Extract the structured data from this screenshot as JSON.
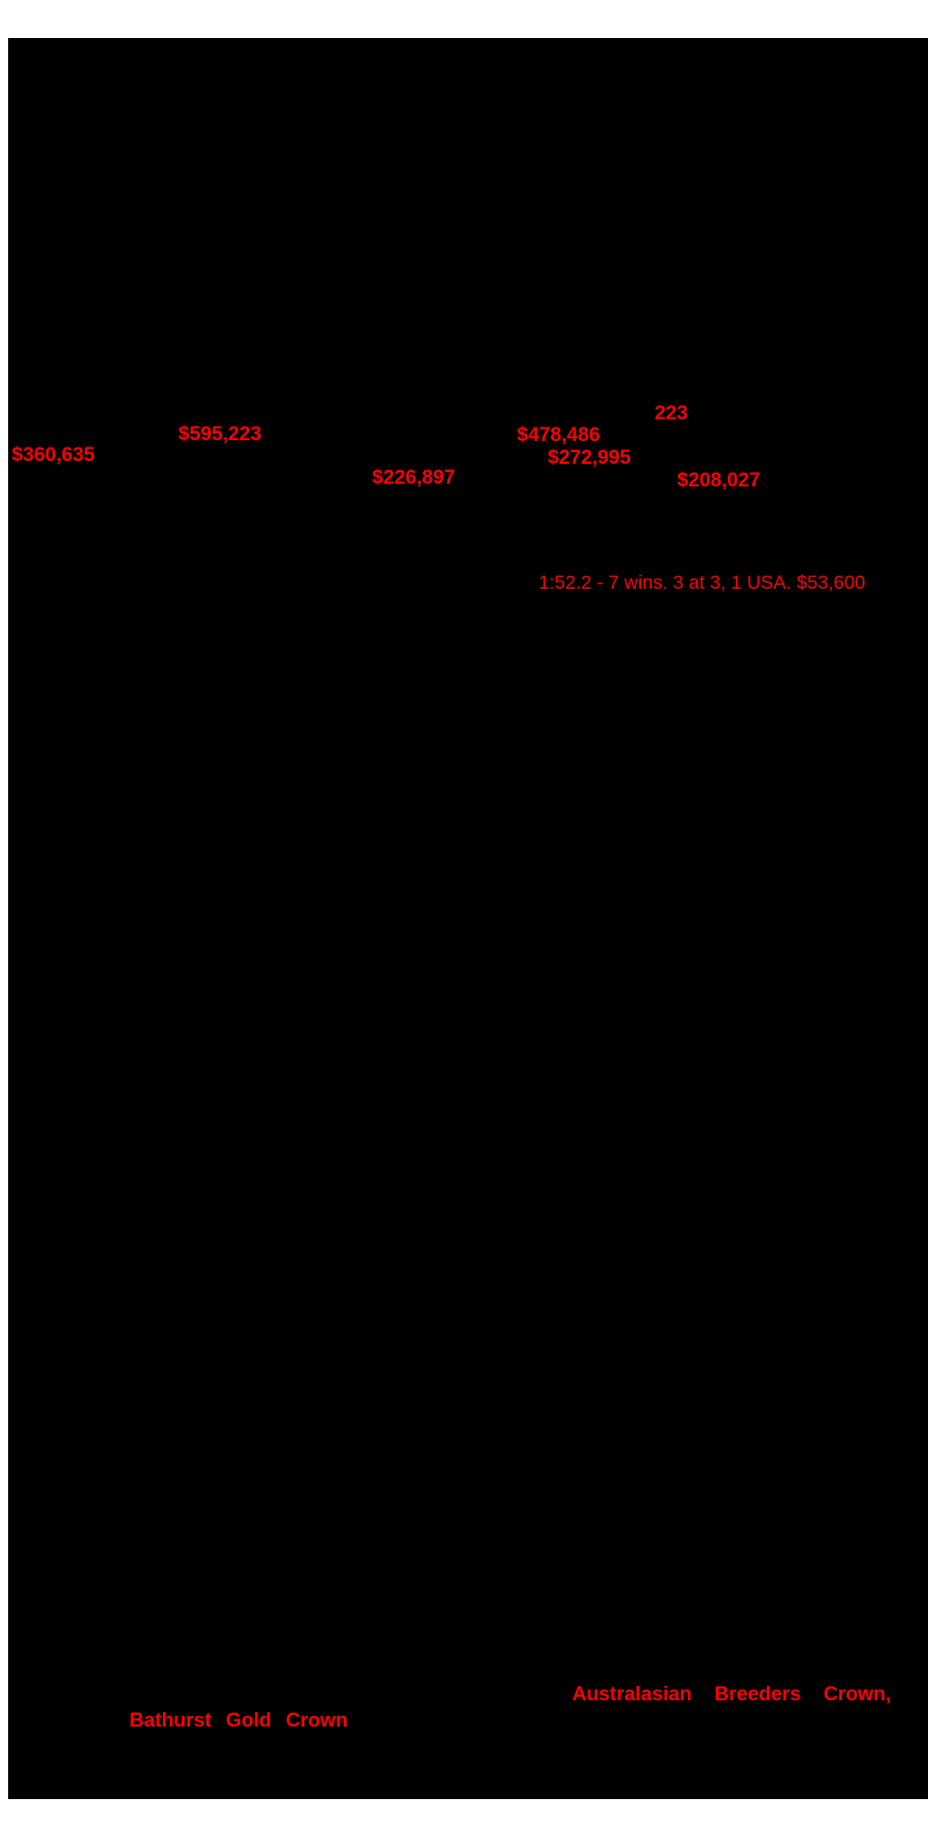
{
  "page": {
    "background_color": "#ffffff",
    "panel_color": "#000000",
    "accent_color": "#ff0000"
  },
  "earnings_values": {
    "amount_1": "$360,635",
    "amount_2": "$595,223",
    "amount_3": "$226,897",
    "amount_4": "$478,486",
    "amount_5": "$272,995",
    "amount_6": "223",
    "amount_7": "$208,027"
  },
  "race_record": {
    "line": "1:52.2 - 7 wins. 3 at 3, 1 USA. $53,600"
  },
  "race_names": {
    "australasian": "Australasian Breeders Crown,",
    "bathurst": "Bathurst Gold Crown"
  }
}
